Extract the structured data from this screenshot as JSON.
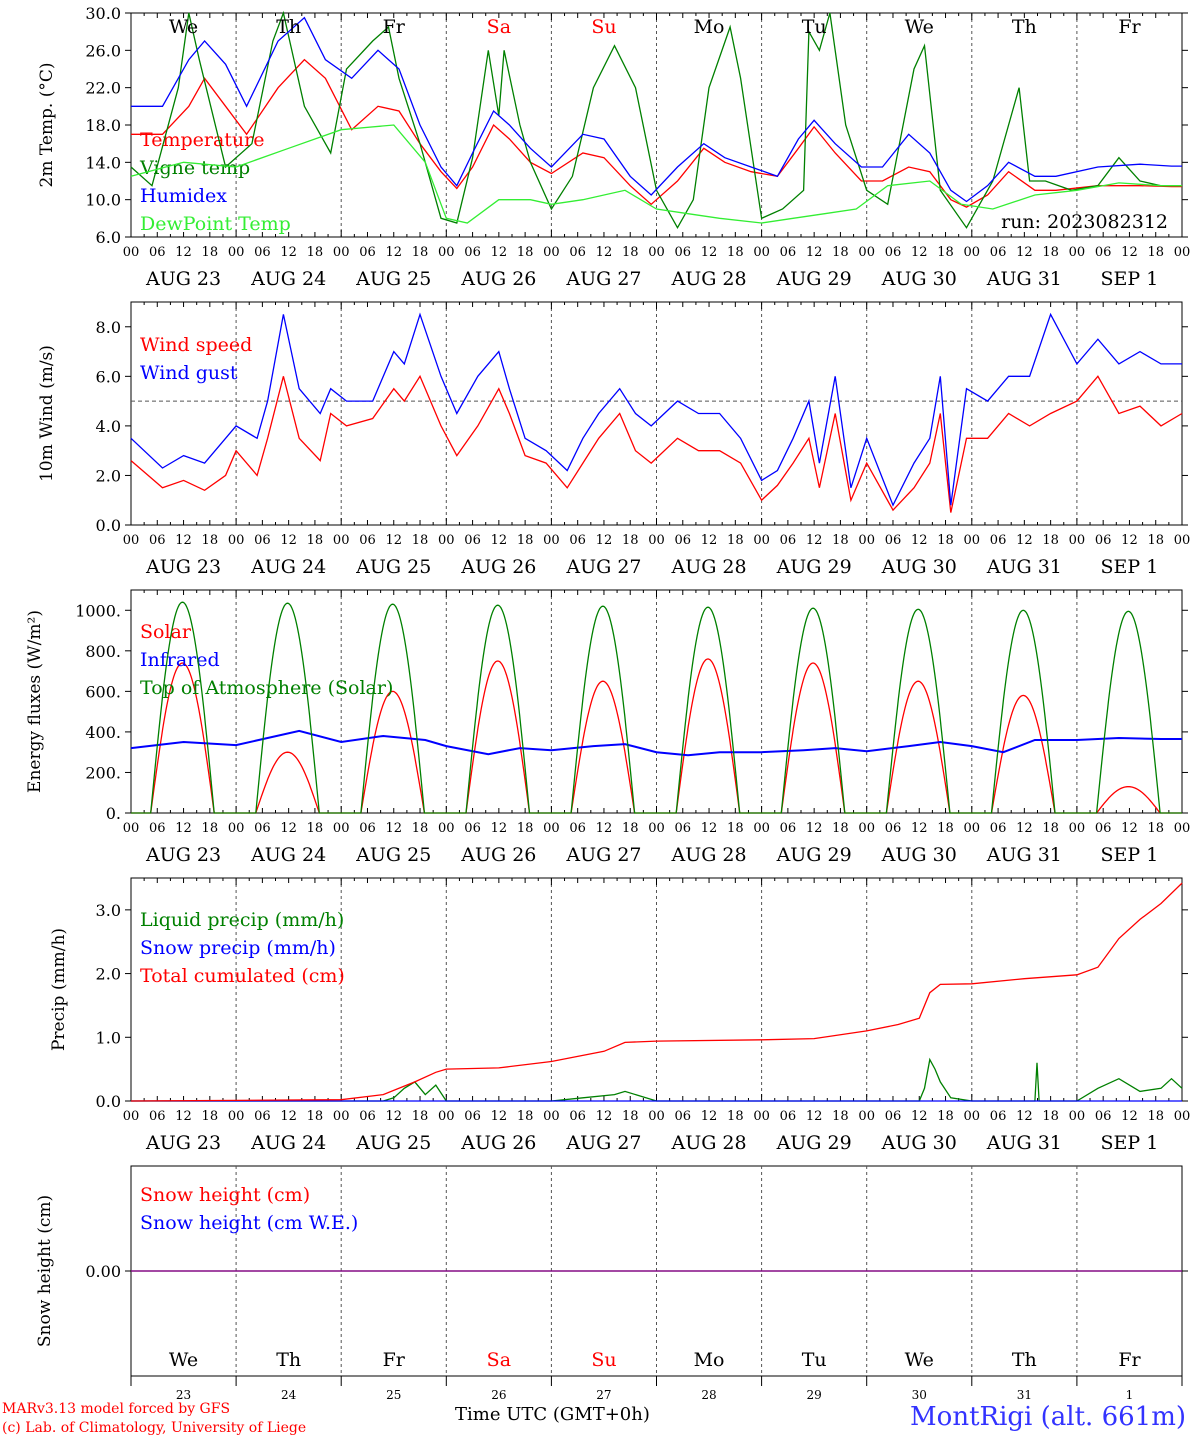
{
  "run_label": "run: 2023082312",
  "weekday_labels": [
    "We",
    "Th",
    "Fr",
    "Sa",
    "Su",
    "Mo",
    "Tu",
    "We",
    "Th",
    "Fr"
  ],
  "weekend_indices": [
    3,
    4
  ],
  "date_labels": [
    "AUG 23",
    "AUG 24",
    "AUG 25",
    "AUG 26",
    "AUG 27",
    "AUG 28",
    "AUG 29",
    "AUG 30",
    "AUG 31",
    "SEP  1"
  ],
  "day_numbers": [
    "23",
    "24",
    "25",
    "26",
    "27",
    "28",
    "29",
    "30",
    "31",
    "1"
  ],
  "hour_tick_labels": [
    "00",
    "06",
    "12",
    "18"
  ],
  "footer": {
    "model": "MARv3.13 model forced by GFS",
    "lab": "(c) Lab. of Climatology, University of Liege",
    "time_axis": "Time UTC (GMT+0h)",
    "station": "MontRigi (alt. 661m)"
  },
  "colors": {
    "red": "#ff0000",
    "green": "#008000",
    "blue": "#0000ff",
    "lightgreen": "#33ee33",
    "purple": "#7f007f"
  },
  "chart_data": [
    {
      "type": "line",
      "ylabel": "2m Temp. (°C)",
      "ylim": [
        6,
        30
      ],
      "yticks": [
        "30.0",
        "26.0",
        "22.0",
        "18.0",
        "14.0",
        "10.0",
        "6.0"
      ],
      "x_unit": "days from AUG 23 00 UTC",
      "xlim": [
        0,
        10
      ],
      "series": [
        {
          "name": "Temperature",
          "color": "red",
          "x": [
            0,
            0.3,
            0.55,
            0.7,
            0.9,
            1.1,
            1.4,
            1.65,
            1.85,
            2.1,
            2.35,
            2.55,
            2.75,
            2.95,
            3.1,
            3.25,
            3.45,
            3.6,
            3.8,
            4.0,
            4.3,
            4.5,
            4.75,
            4.95,
            5.2,
            5.45,
            5.65,
            5.9,
            6.15,
            6.35,
            6.5,
            6.7,
            6.95,
            7.15,
            7.4,
            7.6,
            7.8,
            7.95,
            8.15,
            8.35,
            8.6,
            8.8,
            9.2,
            9.6,
            9.9,
            10
          ],
          "y": [
            17,
            17,
            20,
            23,
            20,
            17,
            22,
            25,
            23,
            17.5,
            20,
            19.5,
            16,
            13,
            11.2,
            13.5,
            18,
            16.5,
            14,
            12.8,
            15,
            14.5,
            11.5,
            9.5,
            12,
            15.5,
            14,
            13,
            12.5,
            15.5,
            17.8,
            15,
            12,
            12,
            13.5,
            13,
            10,
            9.2,
            10.5,
            13,
            11,
            11,
            11.5,
            11.5,
            11.4,
            11.4
          ]
        },
        {
          "name": "Vigne temp",
          "color": "green",
          "x": [
            0,
            0.2,
            0.45,
            0.55,
            0.65,
            0.9,
            1.15,
            1.35,
            1.45,
            1.65,
            1.9,
            2.05,
            2.3,
            2.45,
            2.55,
            2.75,
            2.95,
            3.1,
            3.25,
            3.4,
            3.5,
            3.55,
            3.7,
            3.8,
            4.0,
            4.2,
            4.4,
            4.6,
            4.8,
            5.0,
            5.2,
            5.35,
            5.5,
            5.7,
            5.8,
            6.0,
            6.2,
            6.4,
            6.45,
            6.55,
            6.65,
            6.8,
            7.0,
            7.2,
            7.45,
            7.55,
            7.7,
            7.95,
            8.2,
            8.45,
            8.55,
            8.7,
            8.95,
            9.2,
            9.4,
            9.6,
            9.8,
            10
          ],
          "y": [
            13.5,
            11.5,
            22,
            30,
            25,
            13.5,
            16,
            27,
            30,
            20,
            15,
            24,
            27,
            28.5,
            23,
            16,
            8,
            7.5,
            14.5,
            26,
            19,
            26,
            18,
            14,
            9,
            12.5,
            22,
            26.5,
            22,
            11,
            7,
            10,
            22,
            28.5,
            23,
            8,
            9,
            11,
            28,
            26,
            30,
            18,
            11,
            9.5,
            24,
            26.5,
            11,
            7,
            12,
            22,
            12,
            12,
            11,
            11.5,
            14.5,
            12,
            11.5,
            11.5
          ]
        },
        {
          "name": "Humidex",
          "color": "blue",
          "x": [
            0,
            0.3,
            0.55,
            0.7,
            0.9,
            1.1,
            1.4,
            1.65,
            1.85,
            2.1,
            2.35,
            2.55,
            2.75,
            2.95,
            3.1,
            3.25,
            3.45,
            3.6,
            3.8,
            4.0,
            4.3,
            4.5,
            4.75,
            4.95,
            5.2,
            5.45,
            5.65,
            5.9,
            6.15,
            6.35,
            6.5,
            6.7,
            6.95,
            7.15,
            7.4,
            7.6,
            7.8,
            7.95,
            8.15,
            8.35,
            8.6,
            8.8,
            9.2,
            9.6,
            9.9,
            10
          ],
          "y": [
            20,
            20,
            25,
            27,
            24.5,
            20,
            27,
            29.5,
            25,
            23,
            26,
            24,
            18,
            13.5,
            11.5,
            15,
            19.5,
            18,
            15.5,
            13.5,
            17,
            16.5,
            12.5,
            10.5,
            13.5,
            16,
            14.5,
            13.5,
            12.5,
            16.5,
            18.5,
            16,
            13.5,
            13.5,
            17,
            15,
            11,
            9.8,
            11.5,
            14,
            12.5,
            12.5,
            13.5,
            13.8,
            13.6,
            13.6
          ]
        },
        {
          "name": "DewPoint Temp",
          "color": "lightgreen",
          "x": [
            0,
            0.5,
            1.0,
            1.5,
            2.0,
            2.5,
            2.8,
            3.0,
            3.2,
            3.5,
            3.8,
            4.0,
            4.3,
            4.7,
            5.0,
            5.3,
            5.6,
            6.0,
            6.3,
            6.6,
            6.9,
            7.2,
            7.6,
            7.9,
            8.2,
            8.6,
            9.0,
            9.4,
            9.8,
            10
          ],
          "y": [
            12.5,
            14,
            13.5,
            15.5,
            17.5,
            18,
            14,
            8,
            7.5,
            10,
            10,
            9.5,
            10,
            11,
            9,
            8.5,
            8,
            7.5,
            8,
            8.5,
            9,
            11.5,
            12,
            9.5,
            9,
            10.5,
            11,
            11.8,
            11.5,
            11.5
          ]
        }
      ]
    },
    {
      "type": "line",
      "ylabel": "10m Wind (m/s)",
      "ylim": [
        0,
        9
      ],
      "yticks": [
        "8.0",
        "6.0",
        "4.0",
        "2.0",
        "0.0"
      ],
      "reference_line": 5,
      "xlim": [
        0,
        10
      ],
      "series": [
        {
          "name": "Wind speed",
          "color": "red",
          "x": [
            0,
            0.3,
            0.5,
            0.7,
            0.9,
            1.0,
            1.2,
            1.3,
            1.45,
            1.6,
            1.8,
            1.9,
            2.05,
            2.3,
            2.5,
            2.6,
            2.75,
            2.95,
            3.1,
            3.3,
            3.5,
            3.6,
            3.75,
            3.95,
            4.15,
            4.3,
            4.45,
            4.65,
            4.8,
            4.95,
            5.2,
            5.4,
            5.6,
            5.8,
            6.0,
            6.15,
            6.3,
            6.45,
            6.55,
            6.7,
            6.85,
            7.0,
            7.25,
            7.45,
            7.6,
            7.7,
            7.8,
            7.95,
            8.15,
            8.35,
            8.55,
            8.75,
            9.0,
            9.2,
            9.4,
            9.6,
            9.8,
            10
          ],
          "y": [
            2.6,
            1.5,
            1.8,
            1.4,
            2.0,
            3.0,
            2.0,
            3.5,
            6.0,
            3.5,
            2.6,
            4.5,
            4.0,
            4.3,
            5.5,
            5.0,
            6.0,
            4.0,
            2.8,
            4.0,
            5.5,
            4.5,
            2.8,
            2.5,
            1.5,
            2.5,
            3.5,
            4.5,
            3.0,
            2.5,
            3.5,
            3.0,
            3.0,
            2.5,
            1.0,
            1.6,
            2.5,
            3.5,
            1.5,
            4.5,
            1.0,
            2.5,
            0.6,
            1.5,
            2.5,
            4.5,
            0.5,
            3.5,
            3.5,
            4.5,
            4.0,
            4.5,
            5.0,
            6.0,
            4.5,
            4.8,
            4.0,
            4.5
          ]
        },
        {
          "name": "Wind gust",
          "color": "blue",
          "x": [
            0,
            0.3,
            0.5,
            0.7,
            0.9,
            1.0,
            1.2,
            1.3,
            1.45,
            1.6,
            1.8,
            1.9,
            2.05,
            2.3,
            2.5,
            2.6,
            2.75,
            2.95,
            3.1,
            3.3,
            3.5,
            3.6,
            3.75,
            3.95,
            4.15,
            4.3,
            4.45,
            4.65,
            4.8,
            4.95,
            5.2,
            5.4,
            5.6,
            5.8,
            6.0,
            6.15,
            6.3,
            6.45,
            6.55,
            6.7,
            6.85,
            7.0,
            7.25,
            7.45,
            7.6,
            7.7,
            7.8,
            7.95,
            8.15,
            8.35,
            8.55,
            8.75,
            9.0,
            9.2,
            9.4,
            9.6,
            9.8,
            10
          ],
          "y": [
            3.5,
            2.3,
            2.8,
            2.5,
            3.5,
            4.0,
            3.5,
            5.0,
            8.5,
            5.5,
            4.5,
            5.5,
            5.0,
            5.0,
            7.0,
            6.5,
            8.5,
            6.0,
            4.5,
            6.0,
            7.0,
            5.5,
            3.5,
            3.0,
            2.2,
            3.5,
            4.5,
            5.5,
            4.5,
            4.0,
            5.0,
            4.5,
            4.5,
            3.5,
            1.8,
            2.2,
            3.5,
            5.0,
            2.5,
            6.0,
            1.5,
            3.5,
            0.8,
            2.5,
            3.5,
            6.0,
            0.8,
            5.5,
            5.0,
            6.0,
            6.0,
            8.5,
            6.5,
            7.5,
            6.5,
            7.0,
            6.5,
            6.5
          ]
        }
      ]
    },
    {
      "type": "line",
      "ylabel": "Energy fluxes (W/m²)",
      "ylim": [
        0,
        1100
      ],
      "yticks": [
        "1000.",
        "800.",
        "600.",
        "400.",
        "200.",
        "0."
      ],
      "xlim": [
        0,
        10
      ],
      "series": [
        {
          "name": "Solar",
          "color": "red",
          "day_peaks": [
            740,
            300,
            600,
            750,
            650,
            760,
            740,
            650,
            580,
            130
          ]
        },
        {
          "name": "Infrared",
          "color": "blue",
          "x": [
            0,
            0.5,
            1.0,
            1.3,
            1.6,
            2.0,
            2.4,
            2.8,
            3.0,
            3.4,
            3.7,
            4.0,
            4.4,
            4.7,
            5.0,
            5.3,
            5.6,
            6.0,
            6.4,
            6.7,
            7.0,
            7.4,
            7.7,
            8.0,
            8.3,
            8.6,
            9.0,
            9.4,
            9.8,
            10
          ],
          "y": [
            320,
            350,
            335,
            370,
            405,
            350,
            380,
            360,
            330,
            290,
            320,
            310,
            330,
            340,
            300,
            285,
            300,
            300,
            310,
            320,
            305,
            330,
            350,
            330,
            300,
            360,
            360,
            370,
            365,
            365
          ]
        },
        {
          "name": "Top of Atmosphere (Solar)",
          "color": "green",
          "day_peaks": [
            1040,
            1035,
            1030,
            1025,
            1020,
            1015,
            1010,
            1005,
            1000,
            995
          ]
        }
      ]
    },
    {
      "type": "line",
      "ylabel": "Precip (mm/h)",
      "ylim": [
        0,
        3.5
      ],
      "yticks": [
        "3.0",
        "2.0",
        "1.0",
        "0.0"
      ],
      "xlim": [
        0,
        10
      ],
      "series": [
        {
          "name": "Liquid precip (mm/h)",
          "color": "green",
          "x": [
            0,
            2.4,
            2.5,
            2.6,
            2.7,
            2.8,
            2.9,
            3.0,
            4.0,
            4.3,
            4.6,
            4.7,
            5.0,
            7.5,
            7.55,
            7.6,
            7.65,
            7.7,
            7.8,
            8.0,
            8.6,
            8.62,
            8.64,
            8.7,
            9.0,
            9.2,
            9.4,
            9.6,
            9.8,
            9.9,
            10
          ],
          "y": [
            0,
            0,
            0.05,
            0.2,
            0.3,
            0.1,
            0.25,
            0,
            0,
            0.05,
            0.1,
            0.15,
            0,
            0,
            0.2,
            0.65,
            0.5,
            0.3,
            0.05,
            0,
            0,
            0.6,
            0,
            0,
            0,
            0.2,
            0.35,
            0.15,
            0.2,
            0.35,
            0.2
          ]
        },
        {
          "name": "Snow precip (mm/h)",
          "color": "blue",
          "x": [
            0,
            10
          ],
          "y": [
            0,
            0
          ]
        },
        {
          "name": "Total cumulated (cm)",
          "color": "red",
          "x": [
            0,
            1.0,
            2.0,
            2.4,
            2.7,
            2.9,
            3.0,
            3.5,
            4.0,
            4.5,
            4.7,
            5.0,
            6.0,
            6.5,
            7.0,
            7.3,
            7.5,
            7.6,
            7.7,
            8.0,
            8.5,
            9.0,
            9.2,
            9.4,
            9.6,
            9.8,
            10
          ],
          "y": [
            0,
            0.01,
            0.02,
            0.1,
            0.3,
            0.45,
            0.5,
            0.52,
            0.62,
            0.78,
            0.92,
            0.94,
            0.96,
            0.98,
            1.1,
            1.2,
            1.3,
            1.7,
            1.83,
            1.84,
            1.92,
            1.98,
            2.1,
            2.55,
            2.85,
            3.1,
            3.42
          ]
        }
      ]
    },
    {
      "type": "line",
      "ylabel": "Snow height (cm)",
      "ylim": [
        -1,
        1
      ],
      "yticks": [
        "0.00"
      ],
      "xlim": [
        0,
        10
      ],
      "series": [
        {
          "name": "Snow height (cm)",
          "color": "red",
          "x": [
            0,
            10
          ],
          "y": [
            0,
            0
          ]
        },
        {
          "name": "Snow height (cm W.E.)",
          "color": "blue",
          "x": [
            0,
            10
          ],
          "y": [
            0,
            0
          ]
        }
      ]
    }
  ]
}
